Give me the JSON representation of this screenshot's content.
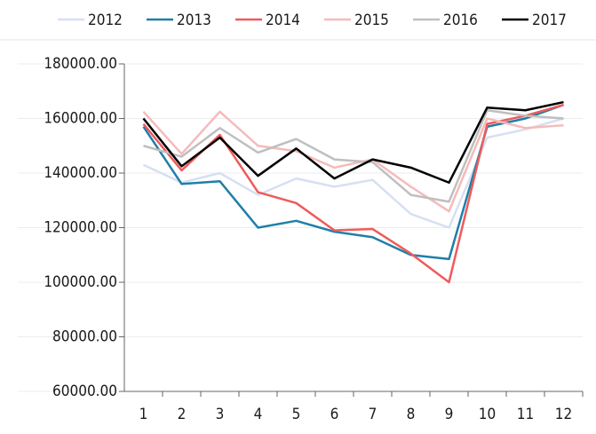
{
  "chart_data": {
    "type": "line",
    "categories": [
      "1",
      "2",
      "3",
      "4",
      "5",
      "6",
      "7",
      "8",
      "9",
      "10",
      "11",
      "12"
    ],
    "series": [
      {
        "name": "2012",
        "color": "#d6e0f2",
        "values": [
          143000,
          136500,
          140000,
          132000,
          138000,
          135000,
          137500,
          125000,
          120000,
          153000,
          156000,
          160000
        ]
      },
      {
        "name": "2013",
        "color": "#1f7fa8",
        "values": [
          157000,
          136000,
          137000,
          120000,
          122500,
          118500,
          116500,
          110000,
          108500,
          157000,
          160000,
          165000
        ]
      },
      {
        "name": "2014",
        "color": "#ef5b5b",
        "values": [
          158000,
          141000,
          154000,
          133000,
          129000,
          119000,
          119500,
          110500,
          100000,
          158000,
          161000,
          165000
        ]
      },
      {
        "name": "2015",
        "color": "#f6baba",
        "values": [
          162500,
          147000,
          162500,
          150000,
          148000,
          142000,
          145000,
          135000,
          126000,
          160000,
          156500,
          157500
        ]
      },
      {
        "name": "2016",
        "color": "#bfbfbf",
        "values": [
          150000,
          146000,
          156500,
          147500,
          152500,
          145000,
          144000,
          132000,
          129500,
          163000,
          161000,
          160000
        ]
      },
      {
        "name": "2017",
        "color": "#000000",
        "values": [
          160000,
          142500,
          153000,
          139000,
          149000,
          138000,
          145000,
          142000,
          136500,
          164000,
          163000,
          166000
        ]
      }
    ],
    "ylim": [
      60000,
      180000
    ],
    "yticks": [
      {
        "value": 60000,
        "label": "60000.00"
      },
      {
        "value": 80000,
        "label": "80000.00"
      },
      {
        "value": 100000,
        "label": "100000.00"
      },
      {
        "value": 120000,
        "label": "120000.00"
      },
      {
        "value": 140000,
        "label": "140000.00"
      },
      {
        "value": 160000,
        "label": "160000.00"
      },
      {
        "value": 180000,
        "label": "180000.00"
      }
    ],
    "grid": true
  }
}
